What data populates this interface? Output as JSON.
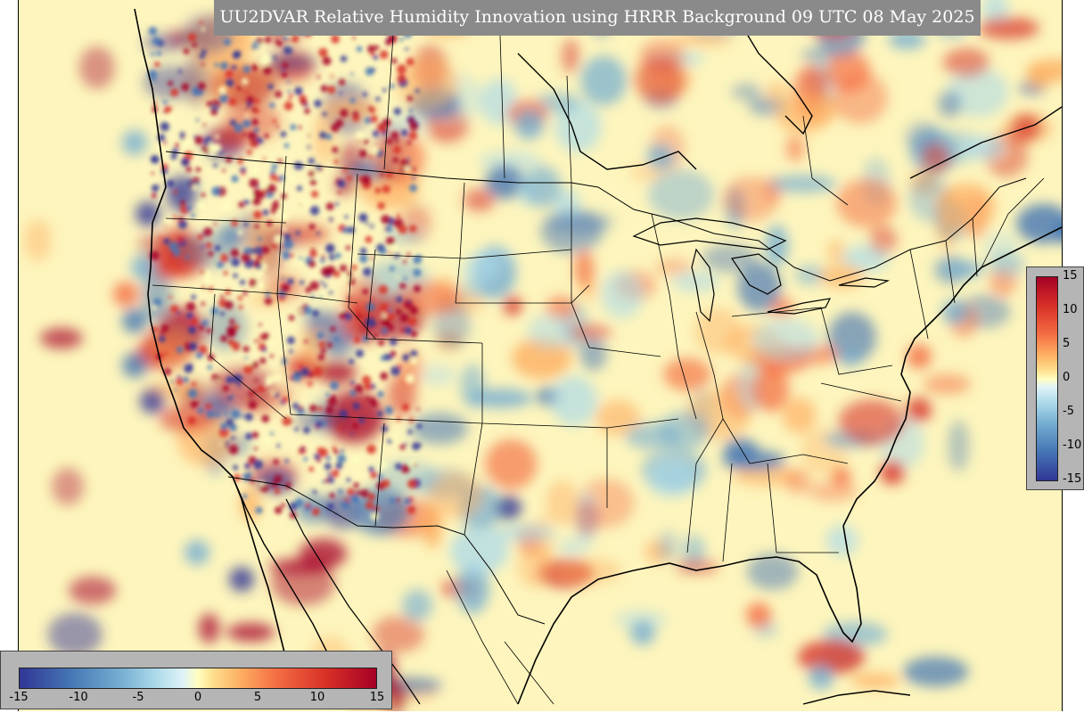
{
  "title": "UU2DVAR Relative Humidity Innovation using HRRR Background 09 UTC 08 May 2025",
  "colorbar": {
    "min": -15,
    "max": 15,
    "vertical_ticks": [
      "15",
      "10",
      "5",
      "0",
      "-5",
      "-10",
      "-15"
    ],
    "horizontal_ticks": [
      "-15",
      "-10",
      "-5",
      "0",
      "5",
      "10",
      "15"
    ],
    "colors": [
      "#313695",
      "#4575b4",
      "#74add1",
      "#abd9e9",
      "#e0f3f8",
      "#ffffbf",
      "#fee090",
      "#fdae61",
      "#f46d43",
      "#d73027",
      "#a50026"
    ]
  },
  "map": {
    "background_color": "#fdf5bd",
    "field": "relative humidity innovation",
    "projection": "lambert-conformal"
  }
}
